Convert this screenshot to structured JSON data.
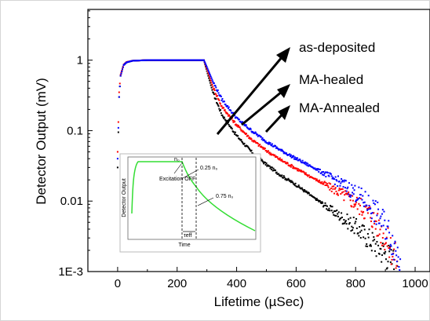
{
  "chart_data": {
    "type": "scatter",
    "xlabel": "Lifetime (µSec)",
    "ylabel": "Detector Output (mV)",
    "xlim": [
      -100,
      1050
    ],
    "ylim_log10": [
      -3,
      0.72
    ],
    "x_scale": "linear",
    "y_scale": "log",
    "grid": false,
    "x_ticks": [
      "0",
      "200",
      "400",
      "600",
      "800",
      "1000"
    ],
    "x_tick_values": [
      0,
      200,
      400,
      600,
      800,
      1000
    ],
    "y_ticks": [
      "1E-3",
      "0.01",
      "0.1",
      "1"
    ],
    "y_tick_values": [
      0.001,
      0.01,
      0.1,
      1
    ],
    "series": [
      {
        "name": "as-deposited",
        "color": "#000000",
        "x": [
          0,
          5,
          10,
          20,
          30,
          50,
          100,
          200,
          290,
          300,
          320,
          350,
          400,
          450,
          500,
          550,
          600,
          650,
          700,
          750,
          800,
          850,
          900,
          940
        ],
        "y": [
          0.03,
          0.3,
          0.6,
          0.85,
          0.93,
          0.98,
          1.0,
          1.0,
          1.0,
          0.7,
          0.35,
          0.17,
          0.085,
          0.05,
          0.033,
          0.023,
          0.017,
          0.012,
          0.0085,
          0.006,
          0.0043,
          0.0028,
          0.0018,
          0.0012
        ]
      },
      {
        "name": "MA-healed",
        "color": "#ff0000",
        "x": [
          0,
          5,
          10,
          20,
          30,
          50,
          100,
          200,
          290,
          300,
          320,
          350,
          400,
          450,
          500,
          550,
          600,
          650,
          700,
          750,
          800,
          850,
          900,
          940
        ],
        "y": [
          0.05,
          0.35,
          0.62,
          0.86,
          0.94,
          0.98,
          1.0,
          1.0,
          1.0,
          0.75,
          0.42,
          0.22,
          0.12,
          0.075,
          0.052,
          0.038,
          0.029,
          0.022,
          0.017,
          0.013,
          0.0095,
          0.0065,
          0.003,
          0.0014
        ]
      },
      {
        "name": "MA-Annealed",
        "color": "#0000ff",
        "x": [
          0,
          5,
          10,
          20,
          30,
          50,
          100,
          200,
          290,
          300,
          320,
          350,
          400,
          450,
          500,
          550,
          600,
          650,
          700,
          750,
          800,
          850,
          900,
          950
        ],
        "y": [
          0.04,
          0.3,
          0.6,
          0.85,
          0.93,
          0.98,
          1.0,
          1.0,
          1.0,
          0.8,
          0.5,
          0.28,
          0.15,
          0.1,
          0.07,
          0.052,
          0.04,
          0.031,
          0.024,
          0.018,
          0.013,
          0.0085,
          0.0045,
          0.0015
        ]
      }
    ],
    "legend": [
      "as-deposited",
      "MA-healed",
      "MA-Annealed"
    ],
    "inset": {
      "xlabel": "Time",
      "ylabel": "Detector Output",
      "labels": [
        "n₀",
        "Excitation OFF",
        "0.25 n₀",
        "0.75 n₀",
        "τeff"
      ],
      "curve_color": "#33dd33"
    }
  }
}
